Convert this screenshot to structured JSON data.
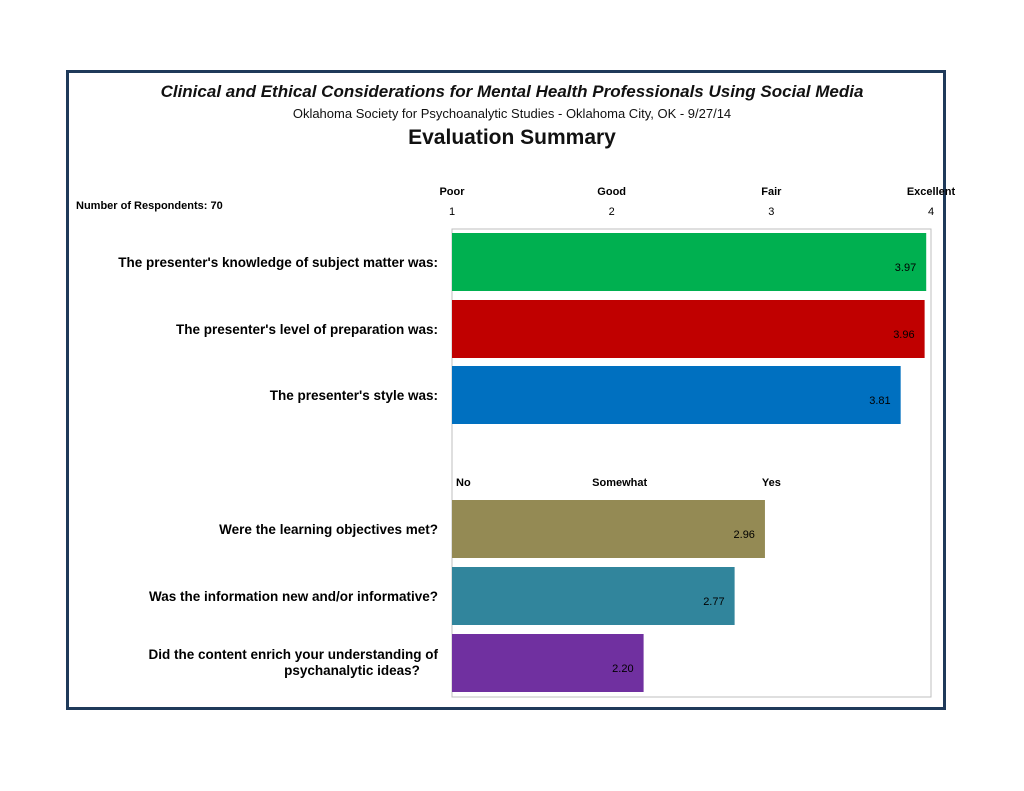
{
  "header": {
    "title": "Clinical and Ethical Considerations for Mental Health Professionals Using Social Media",
    "subtitle": "Oklahoma Society for Psychoanalytic Studies - Oklahoma City, OK - 9/27/14",
    "summary_title": "Evaluation Summary",
    "respondents": "Number of Respondents: 70"
  },
  "chart_data": [
    {
      "type": "bar",
      "orientation": "horizontal",
      "xlim": [
        1,
        4
      ],
      "scale_words": [
        "Poor",
        "Good",
        "Fair",
        "Excellent"
      ],
      "ticks": [
        "1",
        "2",
        "3",
        "4"
      ],
      "categories": [
        "The presenter's knowledge of subject matter was:",
        "The presenter's level of preparation was:",
        "The presenter's style was:"
      ],
      "values": [
        3.97,
        3.96,
        3.81
      ],
      "data_labels": [
        "3.97",
        "3.96",
        "3.81"
      ],
      "colors": [
        "#00b050",
        "#c00000",
        "#0070c0"
      ],
      "grid": false
    },
    {
      "type": "bar",
      "orientation": "horizontal",
      "xlim": [
        1,
        4
      ],
      "scale_words": [
        "No",
        "Somewhat",
        "Yes"
      ],
      "categories": [
        "Were the learning objectives met?",
        "Was the information new and/or informative?",
        "Did the content enrich your understanding of psychanalytic ideas?"
      ],
      "values": [
        2.96,
        2.77,
        2.2
      ],
      "data_labels": [
        "2.96",
        "2.77",
        "2.20"
      ],
      "colors": [
        "#948a54",
        "#31859c",
        "#7030a0"
      ],
      "grid": false
    }
  ]
}
